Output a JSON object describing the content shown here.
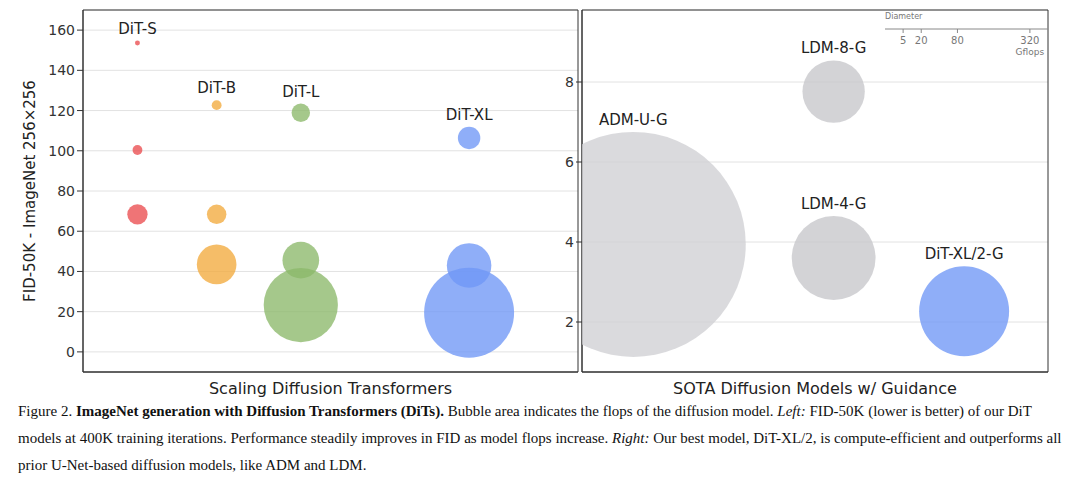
{
  "chart_data": [
    {
      "type": "scatter",
      "x_label": "Scaling Diffusion Transformers",
      "y_label": "FID-50K - ImageNet 256×256",
      "xlim": [
        0,
        1
      ],
      "ylim": [
        -10,
        170
      ],
      "yticks": [
        0,
        20,
        40,
        60,
        80,
        100,
        120,
        140,
        160
      ],
      "grid": true,
      "tick_labels": "y",
      "series": [
        {
          "name": "DiT-S",
          "color": "#eb4d4f",
          "x": [
            0.11,
            0.11,
            0.11
          ],
          "values": [
            153.6,
            100.4,
            68.4
          ],
          "gflops": [
            0.36,
            1.41,
            6.06
          ]
        },
        {
          "name": "DiT-B",
          "color": "#f2aa3e",
          "x": [
            0.27,
            0.27,
            0.27
          ],
          "values": [
            122.7,
            68.4,
            43.5
          ],
          "gflops": [
            1.42,
            5.56,
            23.01
          ]
        },
        {
          "name": "DiT-L",
          "color": "#8cb86a",
          "x": [
            0.44,
            0.44,
            0.44
          ],
          "values": [
            118.9,
            45.6,
            23.3
          ],
          "gflops": [
            5.01,
            19.7,
            80.71
          ]
        },
        {
          "name": "DiT-XL",
          "color": "#6f97f6",
          "x": [
            0.78,
            0.78,
            0.78
          ],
          "values": [
            106.4,
            43.0,
            19.5
          ],
          "gflops": [
            7.39,
            29.05,
            118.64
          ]
        }
      ]
    },
    {
      "type": "scatter",
      "x_label": "SOTA Diffusion Models w/ Guidance",
      "xlim": [
        0,
        1
      ],
      "ylim": [
        0.75,
        9.8
      ],
      "yticks": [
        2,
        4,
        6,
        8
      ],
      "grid": true,
      "tick_labels": "y",
      "categories": [
        "ADM-U-G",
        "LDM-8-G",
        "LDM-4-G",
        "DiT-XL/2-G"
      ],
      "x": [
        0.11,
        0.54,
        0.54,
        0.82
      ],
      "values": [
        3.94,
        7.76,
        3.6,
        2.27
      ],
      "gflops": [
        742,
        57,
        103,
        118.64
      ],
      "colors": [
        "#cfcfd3",
        "#c6c6ca",
        "#c6c6ca",
        "#6f97f6"
      ],
      "size_legend": {
        "title": "Diameter",
        "values": [
          5,
          20,
          80,
          320
        ],
        "unit": "Gflops"
      }
    }
  ],
  "caption": {
    "runs": [
      {
        "text": "Figure 2.",
        "style": "normal"
      },
      {
        "text": "ImageNet generation with Diffusion Transformers (DiTs).",
        "style": "bold"
      },
      {
        "text": "Bubble area indicates the flops of the diffusion model.",
        "style": "normal"
      },
      {
        "text": "Left:",
        "style": "italic"
      },
      {
        "text": "FID-50K (lower is better) of our DiT models at 400K training iterations. Performance steadily improves in FID as model flops increase.",
        "style": "normal"
      },
      {
        "text": "Right:",
        "style": "italic"
      },
      {
        "text": "Our best model, DiT-XL/2, is compute-efficient and outperforms all prior U-Net-based diffusion models, like ADM and LDM.",
        "style": "normal"
      }
    ]
  }
}
